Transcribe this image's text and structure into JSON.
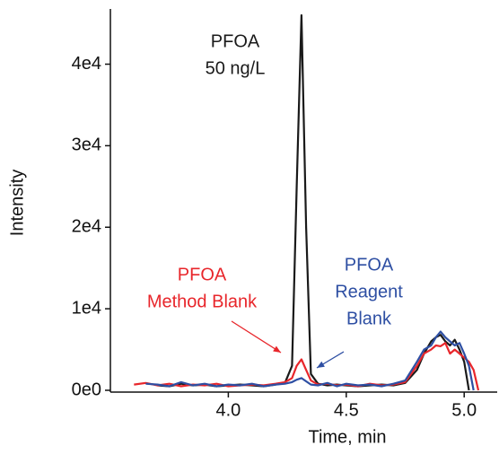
{
  "chart_data": {
    "type": "line",
    "x_label": "Time, min",
    "y_label": "Intensity",
    "x": [
      3.6,
      3.65,
      3.7,
      3.75,
      3.8,
      3.85,
      3.9,
      3.95,
      4.0,
      4.05,
      4.1,
      4.15,
      4.2,
      4.24,
      4.27,
      4.29,
      4.31,
      4.33,
      4.35,
      4.38,
      4.42,
      4.46,
      4.5,
      4.55,
      4.6,
      4.65,
      4.7,
      4.75,
      4.8,
      4.83,
      4.86,
      4.88,
      4.9,
      4.92,
      4.94,
      4.96,
      4.98,
      5.0,
      5.02,
      5.04,
      5.06
    ],
    "series": [
      {
        "color": "#1a1a1a",
        "values": [
          null,
          null,
          600,
          500,
          800,
          600,
          700,
          500,
          600,
          700,
          600,
          500,
          700,
          900,
          3000,
          25000,
          46000,
          20000,
          2000,
          800,
          600,
          700,
          600,
          500,
          600,
          700,
          600,
          900,
          2500,
          4500,
          6000,
          6500,
          6800,
          6000,
          5500,
          6200,
          5000,
          3500,
          0,
          null,
          null
        ]
      },
      {
        "color": "#e8262b",
        "values": [
          700,
          900,
          600,
          800,
          500,
          700,
          600,
          800,
          500,
          600,
          700,
          600,
          800,
          1000,
          1500,
          3000,
          3800,
          2500,
          1200,
          700,
          800,
          600,
          700,
          500,
          800,
          600,
          700,
          1000,
          3000,
          4500,
          5000,
          5500,
          5400,
          5800,
          4500,
          5000,
          4500,
          4000,
          3500,
          2500,
          0
        ]
      },
      {
        "color": "#2e4fa3",
        "values": [
          null,
          800,
          700,
          500,
          1000,
          600,
          800,
          500,
          700,
          600,
          800,
          500,
          700,
          800,
          1000,
          1300,
          1500,
          1100,
          700,
          600,
          900,
          500,
          800,
          600,
          700,
          500,
          800,
          1200,
          3500,
          5000,
          5500,
          6500,
          7200,
          6500,
          6000,
          5500,
          5800,
          4500,
          3000,
          0,
          null
        ]
      }
    ],
    "xlim": [
      3.5,
      5.14
    ],
    "xticks": [
      {
        "value": 4,
        "label": "4.0"
      },
      4.5,
      {
        "value": 5,
        "label": "5.0"
      }
    ],
    "ylim": [
      0,
      46000
    ],
    "yticks": [
      {
        "value": 0,
        "label": "0e0"
      },
      {
        "value": 10000,
        "label": "1e4"
      },
      {
        "value": 20000,
        "label": "2e4"
      },
      {
        "value": 30000,
        "label": "3e4"
      },
      {
        "value": 40000,
        "label": "4e4"
      }
    ],
    "annotations": [
      {
        "lines": [
          "PFOA",
          "50 ng/L"
        ],
        "color": "#1a1a1a"
      },
      {
        "lines": [
          "PFOA",
          "Method Blank"
        ],
        "color": "#e8262b"
      },
      {
        "lines": [
          "PFOA",
          "Reagent",
          "Blank"
        ],
        "color": "#2e4fa3"
      }
    ]
  }
}
